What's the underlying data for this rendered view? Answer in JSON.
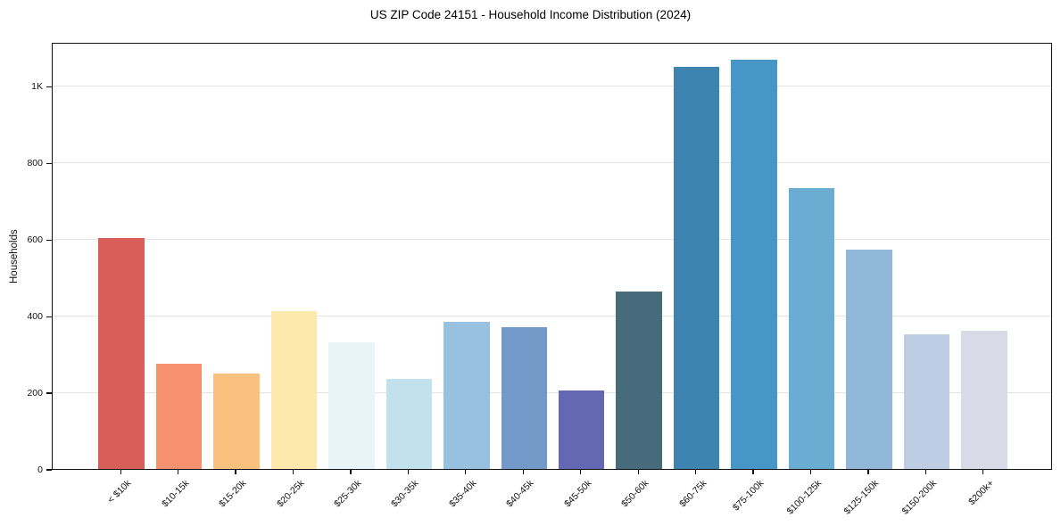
{
  "chart_data": {
    "type": "bar",
    "title": "US ZIP Code 24151 - Household Income Distribution (2024)",
    "xlabel": "",
    "ylabel": "Households",
    "categories": [
      "< $10k",
      "$10-15k",
      "$15-20k",
      "$20-25k",
      "$25-30k",
      "$30-35k",
      "$35-40k",
      "$40-45k",
      "$45-50k",
      "$50-60k",
      "$60-75k",
      "$75-100k",
      "$100-125k",
      "$125-150k",
      "$150-200k",
      "$200k+"
    ],
    "values": [
      602,
      275,
      250,
      413,
      330,
      234,
      385,
      369,
      204,
      464,
      1050,
      1068,
      734,
      573,
      352,
      360
    ],
    "bar_colors": [
      "#d6544f",
      "#f58a66",
      "#fabc76",
      "#fde8a6",
      "#e7f3f7",
      "#bfdfec",
      "#90bddc",
      "#6a93c6",
      "#5a5dac",
      "#3a6272",
      "#317dab",
      "#3a90c4",
      "#62a8cf",
      "#8ab3d7",
      "#bac9e2",
      "#d7d8e7"
    ],
    "ylim": [
      0,
      1115
    ],
    "yticks": [
      0,
      200,
      400,
      600,
      800,
      1000
    ],
    "ytick_labels": [
      "0",
      "200",
      "400",
      "600",
      "800",
      "1K"
    ],
    "grid": "horizontal",
    "gridline_color": "#e3e3e3",
    "legend": "none",
    "background": "#ffffff",
    "spine_color": "#111111"
  }
}
